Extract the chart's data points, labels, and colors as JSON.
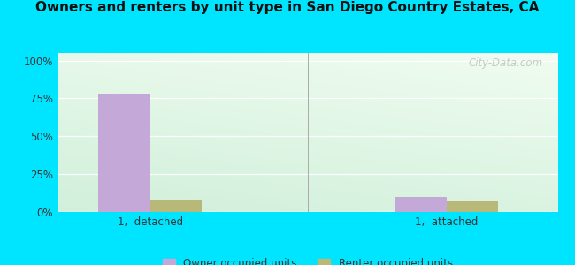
{
  "title": "Owners and renters by unit type in San Diego Country Estates, CA",
  "categories": [
    "1,  detached",
    "1,  attached"
  ],
  "owner_values": [
    78,
    10
  ],
  "renter_values": [
    8,
    7
  ],
  "owner_color": "#c4a8d8",
  "renter_color": "#b8b878",
  "yticks": [
    0,
    25,
    50,
    75,
    100
  ],
  "ytick_labels": [
    "0%",
    "25%",
    "50%",
    "75%",
    "100%"
  ],
  "legend_owner": "Owner occupied units",
  "legend_renter": "Renter occupied units",
  "bar_width": 0.28,
  "group_positions": [
    1.0,
    2.6
  ],
  "bg_outer": "#00e5ff",
  "watermark": "City-Data.com",
  "ylim": [
    0,
    105
  ]
}
